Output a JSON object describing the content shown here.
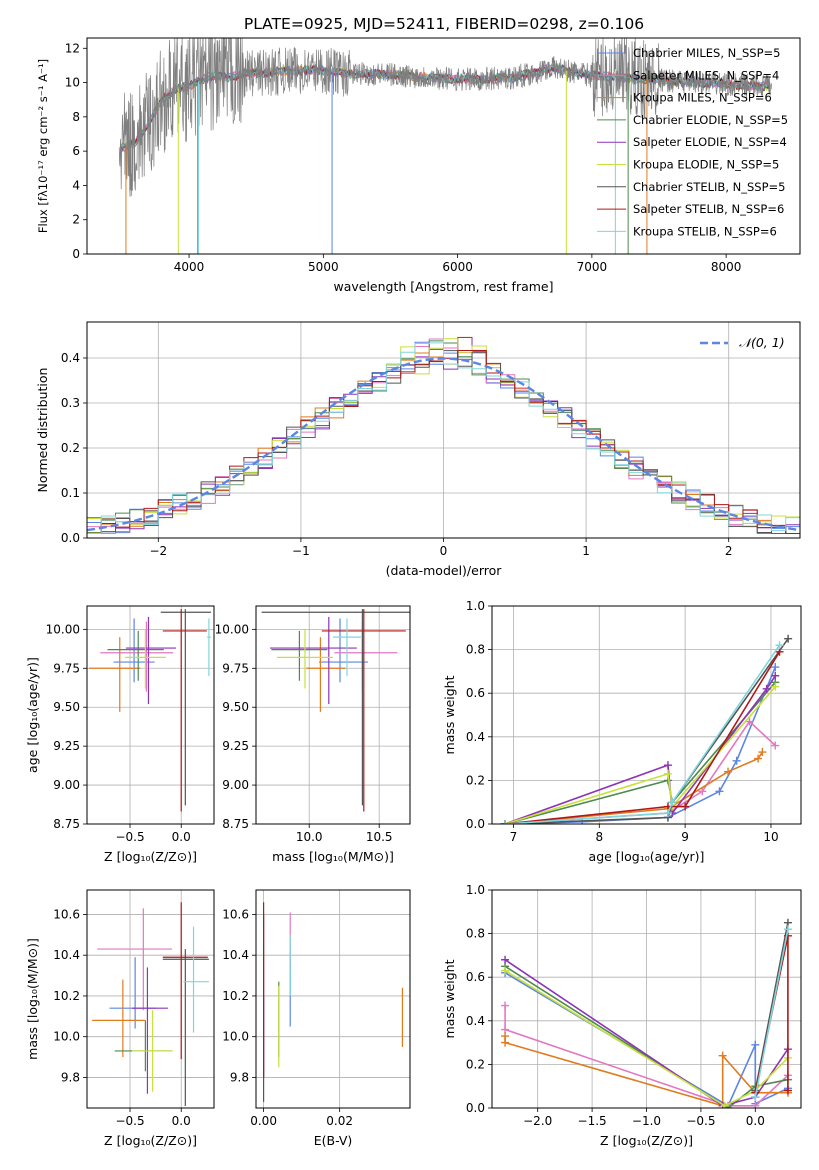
{
  "figure": {
    "title": "PLATE=0925, MJD=52411, FIBERID=0298, z=0.106"
  },
  "colors": {
    "chabrier_miles": "#5b86e5",
    "salpeter_miles": "#e377c2",
    "kroupa_miles": "#e07b1f",
    "chabrier_elodie": "#4d8a4d",
    "salpeter_elodie": "#8e34b5",
    "kroupa_elodie": "#c8e03c",
    "chabrier_stelib": "#555555",
    "salpeter_stelib": "#b01818",
    "kroupa_stelib": "#7fd6dc",
    "grid": "#b0b0b0"
  },
  "chart_data": [
    {
      "type": "line",
      "id": "spectrum",
      "xlabel": "wavelength [Angstrom, rest frame]",
      "ylabel": "Flux [fλ10⁻¹⁷ erg cm⁻² s⁻¹ A⁻¹]",
      "xlim": [
        3240,
        8550
      ],
      "ylim": [
        0,
        12.6
      ],
      "xticks": [
        "4000",
        "5000",
        "6000",
        "7000",
        "8000"
      ],
      "yticks": [
        "0",
        "2",
        "4",
        "6",
        "8",
        "10",
        "12"
      ],
      "grid": false,
      "legend": "top-right",
      "legend_entries": [
        "Chabrier MILES, N_SSP=5",
        "Salpeter MILES, N_SSP=4",
        "Kroupa MILES, N_SSP=6",
        "Chabrier ELODIE, N_SSP=5",
        "Salpeter ELODIE, N_SSP=4",
        "Kroupa ELODIE, N_SSP=5",
        "Chabrier STELIB, N_SSP=5",
        "Salpeter STELIB, N_SSP=6",
        "Kroupa STELIB, N_SSP=6"
      ],
      "continuum": {
        "x": [
          3500,
          3600,
          3700,
          3800,
          3900,
          4000,
          4100,
          4200,
          4300,
          4400,
          4600,
          4800,
          5000,
          5200,
          5400,
          5600,
          5800,
          6000,
          6200,
          6400,
          6600,
          6700,
          6800,
          7000,
          7200,
          7400,
          7600,
          7800,
          8000,
          8200,
          8350
        ],
        "y": [
          6.2,
          6.5,
          7.6,
          9.0,
          9.6,
          9.8,
          10.2,
          10.4,
          10.3,
          10.5,
          10.6,
          10.7,
          10.7,
          10.5,
          10.5,
          10.4,
          10.3,
          10.2,
          10.2,
          10.3,
          10.6,
          10.9,
          10.7,
          10.4,
          10.3,
          10.2,
          10.1,
          10.0,
          9.9,
          9.8,
          9.8
        ]
      }
    },
    {
      "type": "histogram",
      "id": "residuals",
      "xlabel": "(data-model)/error",
      "ylabel": "Normed distribution",
      "xlim": [
        -2.5,
        2.5
      ],
      "ylim": [
        0,
        0.48
      ],
      "xticks": [
        "−2",
        "−1",
        "0",
        "1",
        "2"
      ],
      "yticks": [
        "0.0",
        "0.1",
        "0.2",
        "0.3",
        "0.4"
      ],
      "grid": true,
      "legend": "top-right",
      "gaussian_label": "𝒩(0, 1)",
      "bin_width": 0.1,
      "bin_start": -2.5
    },
    {
      "type": "errorbar",
      "id": "age_vs_Z",
      "xlabel": "Z [log₁₀(Z/Z⊙)]",
      "ylabel": "age  [log₁₀(age/yr)]",
      "xlim": [
        -0.92,
        0.32
      ],
      "ylim": [
        8.75,
        10.15
      ],
      "xticks": [
        "−0.5",
        "0.0"
      ],
      "yticks": [
        "8.75",
        "9.00",
        "9.25",
        "9.50",
        "9.75",
        "10.00"
      ],
      "grid": true,
      "points": [
        {
          "series": "chabrier_miles",
          "x": -0.46,
          "xerr": [
            0.2,
            0.2
          ],
          "y": 9.79,
          "yerr": [
            0.13,
            0.28
          ]
        },
        {
          "series": "salpeter_miles",
          "x": -0.34,
          "xerr": [
            0.45,
            0.26
          ],
          "y": 9.85,
          "yerr": [
            0.25,
            0.2
          ]
        },
        {
          "series": "kroupa_miles",
          "x": -0.6,
          "xerr": [
            0.3,
            0.2
          ],
          "y": 9.75,
          "yerr": [
            0.28,
            0.2
          ]
        },
        {
          "series": "chabrier_elodie",
          "x": -0.42,
          "xerr": [
            0.3,
            0.25
          ],
          "y": 9.87,
          "yerr": [
            0.2,
            0.12
          ]
        },
        {
          "series": "salpeter_elodie",
          "x": -0.32,
          "xerr": [
            0.22,
            0.27
          ],
          "y": 9.88,
          "yerr": [
            0.36,
            0.2
          ]
        },
        {
          "series": "kroupa_elodie",
          "x": -0.35,
          "xerr": [
            0.2,
            0.2
          ],
          "y": 9.82,
          "yerr": [
            0.2,
            0.18
          ]
        },
        {
          "series": "chabrier_stelib",
          "x": 0.04,
          "xerr": [
            0.24,
            0.25
          ],
          "y": 10.11,
          "yerr": [
            1.24,
            0.02
          ]
        },
        {
          "series": "salpeter_stelib",
          "x": 0.0,
          "xerr": [
            0.18,
            0.25
          ],
          "y": 9.99,
          "yerr": [
            1.16,
            0.14
          ]
        },
        {
          "series": "kroupa_stelib",
          "x": 0.27,
          "xerr": [
            0.02,
            0.02
          ],
          "y": 9.95,
          "yerr": [
            0.25,
            0.12
          ]
        }
      ]
    },
    {
      "type": "errorbar",
      "id": "age_vs_mass",
      "xlabel": "mass [log₁₀(M/M⊙)]",
      "ylabel": "",
      "xlim": [
        9.62,
        10.72
      ],
      "ylim": [
        8.75,
        10.15
      ],
      "xticks": [
        "10.0",
        "10.5"
      ],
      "yticks": [
        "8.75",
        "9.00",
        "9.25",
        "9.50",
        "9.75",
        "10.00"
      ],
      "grid": true,
      "points": [
        {
          "series": "chabrier_miles",
          "x": 10.22,
          "xerr": [
            0.15,
            0.2
          ],
          "y": 9.79,
          "yerr": [
            0.13,
            0.28
          ]
        },
        {
          "series": "salpeter_miles",
          "x": 10.38,
          "xerr": [
            0.2,
            0.25
          ],
          "y": 9.85,
          "yerr": [
            0.25,
            0.2
          ]
        },
        {
          "series": "kroupa_miles",
          "x": 10.08,
          "xerr": [
            0.1,
            0.18
          ],
          "y": 9.75,
          "yerr": [
            0.28,
            0.2
          ]
        },
        {
          "series": "chabrier_elodie",
          "x": 9.93,
          "xerr": [
            0.2,
            0.2
          ],
          "y": 9.87,
          "yerr": [
            0.2,
            0.12
          ]
        },
        {
          "series": "salpeter_elodie",
          "x": 10.14,
          "xerr": [
            0.42,
            0.2
          ],
          "y": 9.88,
          "yerr": [
            0.36,
            0.2
          ]
        },
        {
          "series": "kroupa_elodie",
          "x": 9.97,
          "xerr": [
            0.2,
            0.2
          ],
          "y": 9.82,
          "yerr": [
            0.2,
            0.18
          ]
        },
        {
          "series": "chabrier_stelib",
          "x": 10.38,
          "xerr": [
            0.72,
            0.5
          ],
          "y": 10.11,
          "yerr": [
            1.24,
            0.02
          ]
        },
        {
          "series": "salpeter_stelib",
          "x": 10.39,
          "xerr": [
            0.3,
            0.3
          ],
          "y": 9.99,
          "yerr": [
            1.16,
            0.14
          ]
        },
        {
          "series": "kroupa_stelib",
          "x": 10.27,
          "xerr": [
            0.1,
            0.1
          ],
          "y": 9.95,
          "yerr": [
            0.25,
            0.12
          ]
        }
      ]
    },
    {
      "type": "line",
      "id": "weight_vs_age",
      "xlabel": "age  [log₁₀(age/yr)]",
      "ylabel": "mass weight",
      "xlim": [
        6.75,
        10.35
      ],
      "ylim": [
        0,
        1.0
      ],
      "xticks": [
        "7",
        "8",
        "9",
        "10"
      ],
      "yticks": [
        "0.0",
        "0.2",
        "0.4",
        "0.6",
        "0.8",
        "1.0"
      ],
      "grid": true,
      "series": [
        {
          "name": "chabrier_miles",
          "x": [
            6.9,
            7.8,
            8.8,
            9.4,
            9.6,
            10.05
          ],
          "y": [
            0.0,
            0.01,
            0.03,
            0.15,
            0.29,
            0.72
          ]
        },
        {
          "name": "salpeter_miles",
          "x": [
            6.9,
            8.8,
            9.2,
            9.75,
            10.05
          ],
          "y": [
            0.0,
            0.05,
            0.15,
            0.47,
            0.36
          ]
        },
        {
          "name": "kroupa_miles",
          "x": [
            6.9,
            8.8,
            9.5,
            9.85,
            9.9
          ],
          "y": [
            0.0,
            0.07,
            0.24,
            0.3,
            0.33
          ]
        },
        {
          "name": "chabrier_elodie",
          "x": [
            6.9,
            8.8,
            8.85,
            10.05
          ],
          "y": [
            0.0,
            0.2,
            0.1,
            0.65
          ]
        },
        {
          "name": "salpeter_elodie",
          "x": [
            6.9,
            8.8,
            8.85,
            9.95,
            10.05
          ],
          "y": [
            0.0,
            0.27,
            0.05,
            0.62,
            0.68
          ]
        },
        {
          "name": "kroupa_elodie",
          "x": [
            6.9,
            8.8,
            8.85,
            10.05
          ],
          "y": [
            0.0,
            0.23,
            0.08,
            0.63
          ]
        },
        {
          "name": "chabrier_stelib",
          "x": [
            6.9,
            8.8,
            8.85,
            10.2
          ],
          "y": [
            0.0,
            0.03,
            0.1,
            0.85
          ]
        },
        {
          "name": "salpeter_stelib",
          "x": [
            6.9,
            8.8,
            9.0,
            10.1
          ],
          "y": [
            0.0,
            0.08,
            0.08,
            0.79
          ]
        },
        {
          "name": "kroupa_stelib",
          "x": [
            6.9,
            8.8,
            8.85,
            10.1
          ],
          "y": [
            0.0,
            0.05,
            0.1,
            0.82
          ]
        }
      ]
    },
    {
      "type": "errorbar",
      "id": "mass_vs_Z",
      "xlabel": "Z [log₁₀(Z/Z⊙)]",
      "ylabel": "mass [log₁₀(M/M⊙)]",
      "xlim": [
        -0.92,
        0.32
      ],
      "ylim": [
        9.65,
        10.72
      ],
      "xticks": [
        "−0.5",
        "0.0"
      ],
      "yticks": [
        "9.8",
        "10.0",
        "10.2",
        "10.4",
        "10.6"
      ],
      "grid": true,
      "points": [
        {
          "series": "chabrier_miles",
          "x": -0.45,
          "xerr": [
            0.25,
            0.2
          ],
          "y": 10.14,
          "yerr": [
            0.1,
            0.25
          ]
        },
        {
          "series": "salpeter_miles",
          "x": -0.37,
          "xerr": [
            0.45,
            0.28
          ],
          "y": 10.43,
          "yerr": [
            0.3,
            0.2
          ]
        },
        {
          "series": "kroupa_miles",
          "x": -0.57,
          "xerr": [
            0.3,
            0.22
          ],
          "y": 10.08,
          "yerr": [
            0.18,
            0.2
          ]
        },
        {
          "series": "chabrier_elodie",
          "x": -0.35,
          "xerr": [
            0.3,
            0.25
          ],
          "y": 9.93,
          "yerr": [
            0.1,
            0.15
          ]
        },
        {
          "series": "salpeter_elodie",
          "x": -0.33,
          "xerr": [
            0.15,
            0.2
          ],
          "y": 10.14,
          "yerr": [
            0.42,
            0.2
          ]
        },
        {
          "series": "kroupa_elodie",
          "x": -0.28,
          "xerr": [
            0.2,
            0.2
          ],
          "y": 9.93,
          "yerr": [
            0.2,
            0.2
          ]
        },
        {
          "series": "chabrier_stelib",
          "x": 0.04,
          "xerr": [
            0.22,
            0.23
          ],
          "y": 10.38,
          "yerr": [
            0.72,
            0.05
          ]
        },
        {
          "series": "salpeter_stelib",
          "x": 0.0,
          "xerr": [
            0.18,
            0.26
          ],
          "y": 10.39,
          "yerr": [
            0.5,
            0.27
          ]
        },
        {
          "series": "kroupa_stelib",
          "x": 0.12,
          "xerr": [
            0.1,
            0.15
          ],
          "y": 10.27,
          "yerr": [
            0.25,
            0.27
          ]
        }
      ]
    },
    {
      "type": "errorbar",
      "id": "mass_vs_ebv",
      "xlabel": "E(B-V)",
      "ylabel": "",
      "xlim": [
        -0.002,
        0.0385
      ],
      "ylim": [
        9.65,
        10.72
      ],
      "xticks": [
        "0.00",
        "0.02"
      ],
      "yticks": [
        "9.8",
        "10.0",
        "10.2",
        "10.4",
        "10.6"
      ],
      "grid": true,
      "points": [
        {
          "series": "chabrier_miles",
          "x": 0.007,
          "y": 10.2,
          "yerr": [
            0.15,
            0.22
          ]
        },
        {
          "series": "salpeter_miles",
          "x": 0.007,
          "y": 10.43,
          "yerr": [
            0.1,
            0.18
          ]
        },
        {
          "series": "kroupa_miles",
          "x": 0.0365,
          "y": 10.08,
          "yerr": [
            0.13,
            0.16
          ]
        },
        {
          "series": "chabrier_elodie",
          "x": 0.004,
          "y": 10.05,
          "yerr": [
            0.15,
            0.22
          ]
        },
        {
          "series": "salpeter_elodie",
          "x": 0.0,
          "y": 10.0,
          "yerr": [
            0.2,
            0.2
          ]
        },
        {
          "series": "kroupa_elodie",
          "x": 0.004,
          "y": 10.05,
          "yerr": [
            0.2,
            0.2
          ]
        },
        {
          "series": "chabrier_stelib",
          "x": 0.0,
          "y": 10.2,
          "yerr": [
            0.52,
            0.4
          ]
        },
        {
          "series": "salpeter_stelib",
          "x": 0.0,
          "y": 10.2,
          "yerr": [
            0.4,
            0.46
          ]
        },
        {
          "series": "kroupa_stelib",
          "x": 0.007,
          "y": 10.3,
          "yerr": [
            0.1,
            0.2
          ]
        }
      ]
    },
    {
      "type": "line",
      "id": "weight_vs_Z",
      "xlabel": "Z [log₁₀(Z/Z⊙)]",
      "ylabel": "mass weight",
      "xlim": [
        -2.42,
        0.42
      ],
      "ylim": [
        0,
        1.0
      ],
      "xticks": [
        "−2.0",
        "−1.5",
        "−1.0",
        "−0.5",
        "0.0"
      ],
      "yticks": [
        "0.0",
        "0.2",
        "0.4",
        "0.6",
        "0.8",
        "1.0"
      ],
      "grid": true,
      "series": [
        {
          "name": "chabrier_miles",
          "x": [
            -2.3,
            -0.25,
            0.0,
            0.0,
            0.3
          ],
          "y": [
            0.62,
            0.01,
            0.29,
            0.02,
            0.09
          ]
        },
        {
          "name": "salpeter_miles",
          "x": [
            -2.3,
            -2.3,
            -0.25,
            0.0,
            0.3
          ],
          "y": [
            0.47,
            0.36,
            0.01,
            0.01,
            0.15
          ]
        },
        {
          "name": "kroupa_miles",
          "x": [
            -2.3,
            -2.3,
            -0.3,
            -0.3,
            0.0,
            0.3
          ],
          "y": [
            0.33,
            0.3,
            0.01,
            0.24,
            0.07,
            0.07
          ]
        },
        {
          "name": "chabrier_elodie",
          "x": [
            -2.3,
            -0.25,
            0.0,
            0.3
          ],
          "y": [
            0.65,
            0.0,
            0.1,
            0.13
          ]
        },
        {
          "name": "salpeter_elodie",
          "x": [
            -2.3,
            -0.3,
            0.0,
            0.3
          ],
          "y": [
            0.68,
            0.01,
            0.05,
            0.27
          ]
        },
        {
          "name": "kroupa_elodie",
          "x": [
            -2.3,
            -0.28,
            0.0,
            0.3
          ],
          "y": [
            0.63,
            0.01,
            0.08,
            0.23
          ]
        },
        {
          "name": "chabrier_stelib",
          "x": [
            0.0,
            0.3
          ],
          "y": [
            0.08,
            0.85
          ]
        },
        {
          "name": "salpeter_stelib",
          "x": [
            0.0,
            0.3,
            0.3
          ],
          "y": [
            0.07,
            0.79,
            0.08
          ]
        },
        {
          "name": "kroupa_stelib",
          "x": [
            0.0,
            0.3
          ],
          "y": [
            0.05,
            0.82
          ]
        }
      ]
    }
  ]
}
